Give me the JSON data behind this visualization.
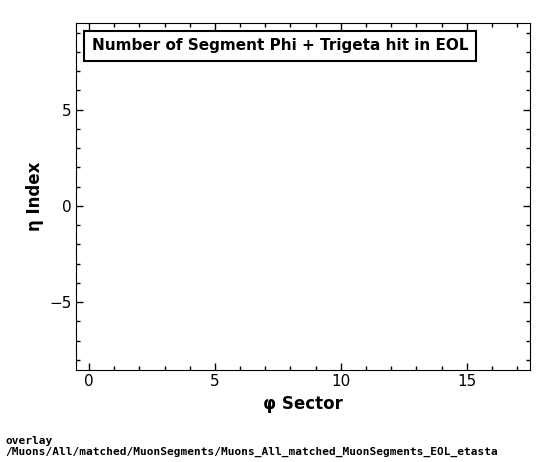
{
  "title": "Number of Segment Phi + Trigeta hit in EOL",
  "xlabel": "φ Sector",
  "ylabel": "η Index",
  "xlim": [
    -0.5,
    17.5
  ],
  "ylim": [
    -8.5,
    9.5
  ],
  "xticks": [
    0,
    5,
    10,
    15
  ],
  "yticks": [
    -5,
    0,
    5
  ],
  "background_color": "#ffffff",
  "plot_bg_color": "#ffffff",
  "caption_line1": "overlay",
  "caption_line2": "/Muons/All/matched/MuonSegments/Muons_All_matched_MuonSegments_EOL_etasta",
  "title_fontsize": 11,
  "axis_label_fontsize": 12,
  "tick_fontsize": 11,
  "caption_fontsize": 8
}
